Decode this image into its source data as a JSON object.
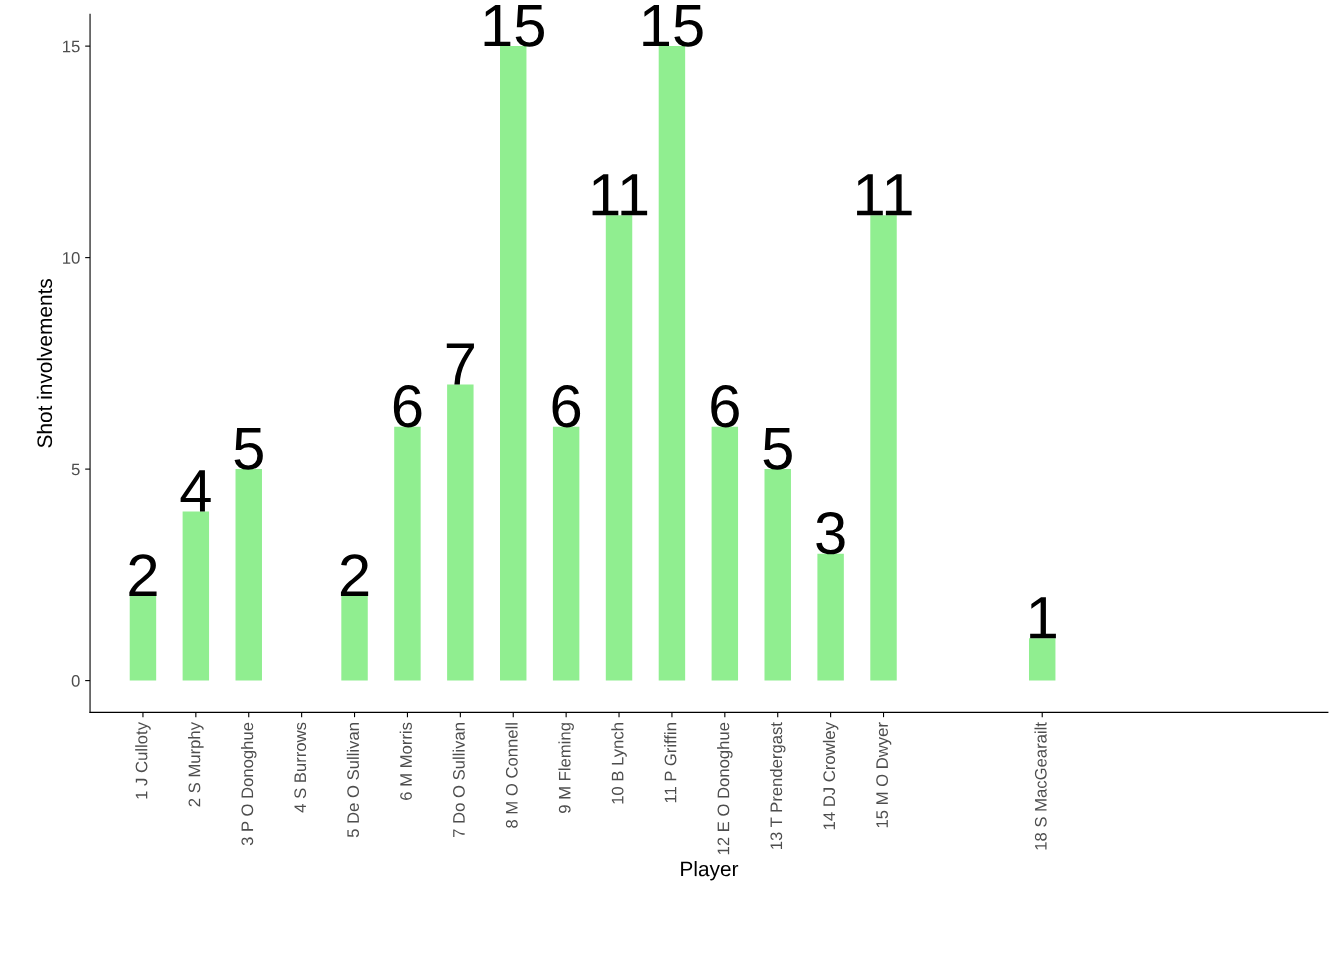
{
  "chart_data": {
    "type": "bar",
    "xlabel": "Player",
    "ylabel": "Shot involvements",
    "x": [
      1,
      2,
      3,
      4,
      5,
      6,
      7,
      8,
      9,
      10,
      11,
      12,
      13,
      14,
      15,
      18
    ],
    "values": [
      2,
      4,
      5,
      null,
      2,
      6,
      7,
      15,
      6,
      11,
      15,
      6,
      5,
      3,
      11,
      1
    ],
    "color": "#90ee90",
    "data_labels": true,
    "xlim": [
      0,
      23.4
    ],
    "ylim": [
      -0.75,
      15.75
    ],
    "yticks": [
      0,
      5,
      10,
      15
    ],
    "xticks": [
      {
        "value": 1,
        "label": "1 J Culloty"
      },
      {
        "value": 2,
        "label": "2 S Murphy"
      },
      {
        "value": 3,
        "label": "3 P O Donoghue"
      },
      {
        "value": 4,
        "label": "4 S Burrows"
      },
      {
        "value": 5,
        "label": "5 De O Sullivan"
      },
      {
        "value": 6,
        "label": "6 M Morris"
      },
      {
        "value": 7,
        "label": "7 Do O Sullivan"
      },
      {
        "value": 8,
        "label": "8 M O Connell"
      },
      {
        "value": 9,
        "label": "9 M Fleming"
      },
      {
        "value": 10,
        "label": "10 B Lynch"
      },
      {
        "value": 11,
        "label": "11 P Griffin"
      },
      {
        "value": 12,
        "label": "12 E O Donoghue"
      },
      {
        "value": 13,
        "label": "13 T Prendergast"
      },
      {
        "value": 14,
        "label": "14 DJ Crowley"
      },
      {
        "value": 15,
        "label": "15 M O Dwyer"
      },
      {
        "value": 18,
        "label": "18 S MacGearailt"
      }
    ],
    "grid": false,
    "legend": false
  }
}
